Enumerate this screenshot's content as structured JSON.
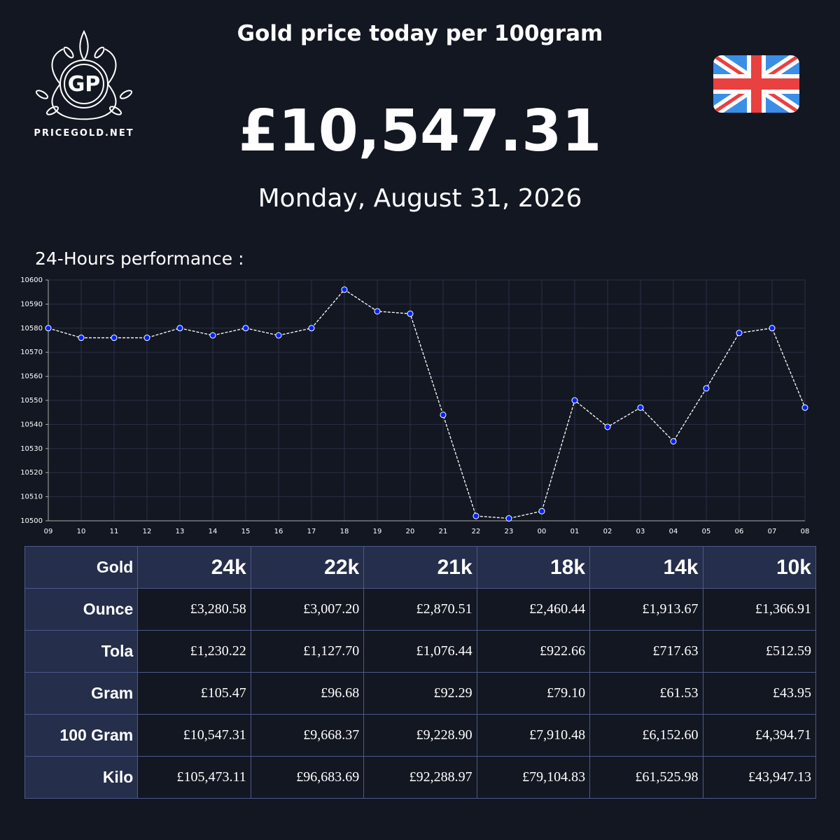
{
  "header": {
    "logo_text": "GP",
    "brand": "PRICEGOLD.NET",
    "title": "Gold price today per 100gram",
    "price": "£10,547.31",
    "date": "Monday, August 31, 2026"
  },
  "chart_data": {
    "type": "line",
    "title": "24-Hours performance :",
    "categories": [
      "09",
      "10",
      "11",
      "12",
      "13",
      "14",
      "15",
      "16",
      "17",
      "18",
      "19",
      "20",
      "21",
      "22",
      "23",
      "00",
      "01",
      "02",
      "03",
      "04",
      "05",
      "06",
      "07",
      "08"
    ],
    "values": [
      10580,
      10576,
      10576,
      10576,
      10580,
      10577,
      10580,
      10577,
      10580,
      10596,
      10587,
      10586,
      10544,
      10502,
      10501,
      10504,
      10550,
      10539,
      10547,
      10533,
      10555,
      10578,
      10580,
      10547
    ],
    "color": "#ffffff",
    "marker_color": "#0022ff",
    "grid": true,
    "ylim": [
      10500,
      10600
    ],
    "yticks": [
      10500,
      10510,
      10520,
      10530,
      10540,
      10550,
      10560,
      10570,
      10580,
      10590,
      10600
    ]
  },
  "table": {
    "header": [
      "Gold",
      "24k",
      "22k",
      "21k",
      "18k",
      "14k",
      "10k"
    ],
    "rows": [
      [
        "Ounce",
        "£3,280.58",
        "£3,007.20",
        "£2,870.51",
        "£2,460.44",
        "£1,913.67",
        "£1,366.91"
      ],
      [
        "Tola",
        "£1,230.22",
        "£1,127.70",
        "£1,076.44",
        "£922.66",
        "£717.63",
        "£512.59"
      ],
      [
        "Gram",
        "£105.47",
        "£96.68",
        "£92.29",
        "£79.10",
        "£61.53",
        "£43.95"
      ],
      [
        "100 Gram",
        "£10,547.31",
        "£9,668.37",
        "£9,228.90",
        "£7,910.48",
        "£6,152.60",
        "£4,394.71"
      ],
      [
        "Kilo",
        "£105,473.11",
        "£96,683.69",
        "£92,288.97",
        "£79,104.83",
        "£61,525.98",
        "£43,947.13"
      ]
    ]
  }
}
